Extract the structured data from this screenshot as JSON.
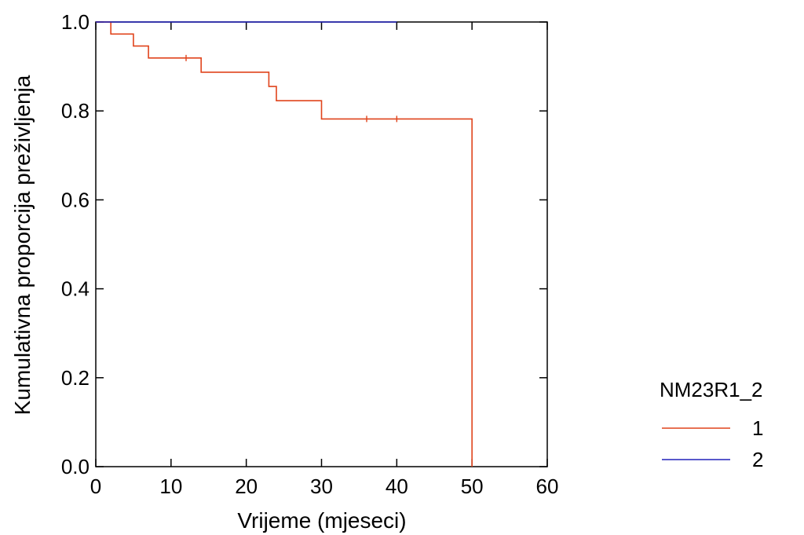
{
  "chart_data": {
    "type": "line",
    "subtype": "kaplan-meier step",
    "title": "",
    "xlabel": "Vrijeme (mjeseci)",
    "ylabel": "Kumulativna proporcija preživljenja",
    "xlim": [
      0,
      60
    ],
    "ylim": [
      0,
      1.0
    ],
    "x_ticks": [
      0,
      10,
      20,
      30,
      40,
      50,
      60
    ],
    "x_tick_labels": [
      "0",
      "10",
      "20",
      "30",
      "40",
      "50",
      "60"
    ],
    "y_ticks": [
      0,
      0.2,
      0.4,
      0.6,
      0.8,
      1.0
    ],
    "y_tick_labels": [
      "0.0",
      "0.2",
      "0.4",
      "0.6",
      "0.8",
      "1.0"
    ],
    "grid": false,
    "legend": {
      "title": "NM23R1_2",
      "placement": "right"
    },
    "series": [
      {
        "name": "1",
        "color": "#e0441c",
        "steps": [
          [
            0,
            1.0
          ],
          [
            2,
            0.973
          ],
          [
            5,
            0.946
          ],
          [
            7,
            0.919
          ],
          [
            14,
            0.887
          ],
          [
            23,
            0.855
          ],
          [
            24,
            0.823
          ],
          [
            30,
            0.782
          ],
          [
            50,
            0.0
          ]
        ],
        "censored": [
          [
            12,
            0.919
          ],
          [
            36,
            0.782
          ],
          [
            40,
            0.782
          ]
        ]
      },
      {
        "name": "2",
        "color": "#2222bb",
        "steps": [
          [
            0,
            1.0
          ],
          [
            40,
            1.0
          ]
        ],
        "censored": []
      }
    ]
  }
}
